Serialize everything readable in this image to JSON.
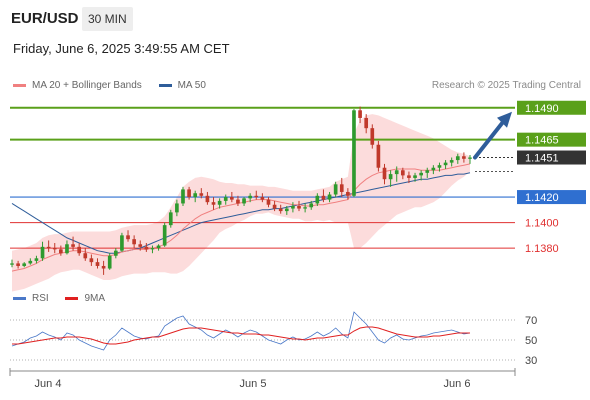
{
  "header": {
    "pair": "EUR/USD",
    "timeframe": "30 MIN",
    "datetime": "Friday, June 6, 2025 3:49:55 AM CET"
  },
  "legend": {
    "ma20_label": "MA 20 + Bollinger Bands",
    "ma50_label": "MA 50",
    "ma20_color": "#f08080",
    "ma50_color": "#2f5d9a",
    "credit": "Research © 2025 Trading Central"
  },
  "rsi_legend": {
    "rsi_label": "RSI",
    "ma_label": "9MA",
    "rsi_color": "#4a78c8",
    "ma_color": "#e02020"
  },
  "chart_data": [
    {
      "type": "candlestick",
      "title": "EUR/USD",
      "x_labels": [
        "Jun 4",
        "Jun 5",
        "Jun 6"
      ],
      "price_labels": [
        {
          "value": 1.149,
          "label": "1.1490",
          "role": "resistance",
          "color": "#5aa01a"
        },
        {
          "value": 1.1465,
          "label": "1.1465",
          "role": "resistance",
          "color": "#5aa01a"
        },
        {
          "value": 1.1451,
          "label": "1.1451",
          "role": "last",
          "color": "#333333"
        },
        {
          "value": 1.142,
          "label": "1.1420",
          "role": "pivot",
          "color": "#2f6fd0"
        },
        {
          "value": 1.14,
          "label": "1.1400",
          "role": "support",
          "color": "#e03030"
        },
        {
          "value": 1.138,
          "label": "1.1380",
          "role": "support",
          "color": "#e03030"
        }
      ],
      "ylim": [
        1.1355,
        1.15
      ],
      "up_color": "#2e9a2e",
      "down_color": "#c0392b",
      "candles": [
        [
          1.1367,
          1.1371,
          1.1365,
          1.1368
        ],
        [
          1.1368,
          1.137,
          1.1364,
          1.1366
        ],
        [
          1.1366,
          1.1369,
          1.1365,
          1.1368
        ],
        [
          1.1368,
          1.1372,
          1.1367,
          1.137
        ],
        [
          1.137,
          1.1374,
          1.1368,
          1.1372
        ],
        [
          1.1372,
          1.1385,
          1.137,
          1.1381
        ],
        [
          1.1381,
          1.1386,
          1.1377,
          1.138
        ],
        [
          1.138,
          1.1384,
          1.1376,
          1.1379
        ],
        [
          1.1379,
          1.1382,
          1.1374,
          1.1376
        ],
        [
          1.1376,
          1.1386,
          1.1375,
          1.1383
        ],
        [
          1.1383,
          1.1389,
          1.1378,
          1.1381
        ],
        [
          1.1381,
          1.1384,
          1.1374,
          1.1376
        ],
        [
          1.1376,
          1.138,
          1.137,
          1.1372
        ],
        [
          1.1372,
          1.1375,
          1.1366,
          1.1369
        ],
        [
          1.1369,
          1.1372,
          1.1364,
          1.1366
        ],
        [
          1.1366,
          1.137,
          1.1359,
          1.1364
        ],
        [
          1.1364,
          1.1376,
          1.1363,
          1.1374
        ],
        [
          1.1374,
          1.138,
          1.1372,
          1.1378
        ],
        [
          1.1378,
          1.1392,
          1.1377,
          1.139
        ],
        [
          1.139,
          1.1394,
          1.1385,
          1.1387
        ],
        [
          1.1387,
          1.139,
          1.138,
          1.1383
        ],
        [
          1.1383,
          1.1386,
          1.1378,
          1.1381
        ],
        [
          1.1381,
          1.1384,
          1.1377,
          1.1379
        ],
        [
          1.1379,
          1.1382,
          1.1376,
          1.138
        ],
        [
          1.138,
          1.1383,
          1.1378,
          1.1382
        ],
        [
          1.1382,
          1.14,
          1.1381,
          1.1398
        ],
        [
          1.1398,
          1.141,
          1.1396,
          1.1408
        ],
        [
          1.1408,
          1.1418,
          1.1405,
          1.1415
        ],
        [
          1.1415,
          1.1428,
          1.1413,
          1.1426
        ],
        [
          1.1426,
          1.1428,
          1.1418,
          1.142
        ],
        [
          1.142,
          1.1425,
          1.1416,
          1.1423
        ],
        [
          1.1423,
          1.1427,
          1.1419,
          1.1421
        ],
        [
          1.1421,
          1.1424,
          1.1414,
          1.1416
        ],
        [
          1.1416,
          1.142,
          1.141,
          1.1414
        ],
        [
          1.1414,
          1.1419,
          1.1411,
          1.1417
        ],
        [
          1.1417,
          1.1422,
          1.1414,
          1.142
        ],
        [
          1.142,
          1.1424,
          1.1416,
          1.1418
        ],
        [
          1.1418,
          1.1421,
          1.1413,
          1.1415
        ],
        [
          1.1415,
          1.142,
          1.1413,
          1.1419
        ],
        [
          1.1419,
          1.1423,
          1.1416,
          1.1421
        ],
        [
          1.1421,
          1.1425,
          1.1418,
          1.142
        ],
        [
          1.142,
          1.1423,
          1.1416,
          1.1418
        ],
        [
          1.1418,
          1.142,
          1.1412,
          1.1414
        ],
        [
          1.1414,
          1.1417,
          1.1409,
          1.1411
        ],
        [
          1.1411,
          1.1414,
          1.1407,
          1.1409
        ],
        [
          1.1409,
          1.1413,
          1.1406,
          1.1411
        ],
        [
          1.1411,
          1.1416,
          1.1408,
          1.1413
        ],
        [
          1.1413,
          1.1417,
          1.1409,
          1.1411
        ],
        [
          1.1411,
          1.1415,
          1.1408,
          1.1412
        ],
        [
          1.1412,
          1.1417,
          1.141,
          1.1415
        ],
        [
          1.1415,
          1.1423,
          1.1413,
          1.1421
        ],
        [
          1.1421,
          1.1426,
          1.1416,
          1.1418
        ],
        [
          1.1418,
          1.1424,
          1.1416,
          1.1422
        ],
        [
          1.1422,
          1.1432,
          1.142,
          1.143
        ],
        [
          1.143,
          1.1435,
          1.142,
          1.1424
        ],
        [
          1.1424,
          1.1427,
          1.1418,
          1.1421
        ],
        [
          1.1421,
          1.1489,
          1.142,
          1.1488
        ],
        [
          1.1488,
          1.1491,
          1.1478,
          1.1482
        ],
        [
          1.1482,
          1.1485,
          1.147,
          1.1474
        ],
        [
          1.1474,
          1.1477,
          1.1458,
          1.1461
        ],
        [
          1.1461,
          1.1464,
          1.144,
          1.1443
        ],
        [
          1.1443,
          1.1446,
          1.143,
          1.1434
        ],
        [
          1.1434,
          1.1441,
          1.1428,
          1.1438
        ],
        [
          1.1438,
          1.1444,
          1.1432,
          1.1441
        ],
        [
          1.1441,
          1.1443,
          1.1434,
          1.1437
        ],
        [
          1.1437,
          1.144,
          1.1431,
          1.1435
        ],
        [
          1.1435,
          1.1439,
          1.1432,
          1.1437
        ],
        [
          1.1437,
          1.1441,
          1.1433,
          1.1439
        ],
        [
          1.1439,
          1.1443,
          1.1435,
          1.1441
        ],
        [
          1.1441,
          1.1445,
          1.1438,
          1.1443
        ],
        [
          1.1443,
          1.1447,
          1.144,
          1.1445
        ],
        [
          1.1445,
          1.1449,
          1.1442,
          1.1447
        ],
        [
          1.1447,
          1.1451,
          1.1444,
          1.1449
        ],
        [
          1.1449,
          1.1454,
          1.1446,
          1.1452
        ],
        [
          1.1452,
          1.1455,
          1.1447,
          1.145
        ],
        [
          1.145,
          1.1453,
          1.1446,
          1.1451
        ]
      ],
      "ma20": [
        1.1362,
        1.1363,
        1.1364,
        1.1366,
        1.1368,
        1.1371,
        1.1373,
        1.1375,
        1.1376,
        1.1377,
        1.1378,
        1.1378,
        1.1377,
        1.1376,
        1.1375,
        1.1374,
        1.1374,
        1.1375,
        1.1377,
        1.1378,
        1.1379,
        1.1379,
        1.1379,
        1.138,
        1.1381,
        1.1383,
        1.1386,
        1.139,
        1.1395,
        1.1399,
        1.1403,
        1.1406,
        1.1408,
        1.141,
        1.1412,
        1.1413,
        1.1414,
        1.1415,
        1.1416,
        1.1417,
        1.1418,
        1.1418,
        1.1418,
        1.1417,
        1.1416,
        1.1415,
        1.1414,
        1.1414,
        1.1413,
        1.1413,
        1.1414,
        1.1414,
        1.1415,
        1.1416,
        1.1417,
        1.1418,
        1.1425,
        1.143,
        1.1434,
        1.1437,
        1.1439,
        1.144,
        1.1441,
        1.1442,
        1.1442,
        1.1442,
        1.1442,
        1.1441,
        1.1441,
        1.1441,
        1.1441,
        1.1442,
        1.1443,
        1.1444,
        1.1445,
        1.1446
      ],
      "bb_upper": [
        1.1378,
        1.1379,
        1.138,
        1.1382,
        1.1384,
        1.1388,
        1.139,
        1.1391,
        1.1391,
        1.1392,
        1.1393,
        1.1393,
        1.1393,
        1.1393,
        1.1393,
        1.1393,
        1.1393,
        1.1394,
        1.1396,
        1.1397,
        1.1398,
        1.1398,
        1.1398,
        1.1399,
        1.1401,
        1.1405,
        1.1412,
        1.142,
        1.1428,
        1.1432,
        1.1435,
        1.1436,
        1.1435,
        1.1434,
        1.1432,
        1.1431,
        1.1431,
        1.143,
        1.143,
        1.1429,
        1.1429,
        1.1429,
        1.1428,
        1.1428,
        1.1427,
        1.1426,
        1.1425,
        1.1425,
        1.1425,
        1.1425,
        1.1426,
        1.1427,
        1.1428,
        1.1432,
        1.1434,
        1.1436,
        1.147,
        1.148,
        1.1484,
        1.1485,
        1.1484,
        1.1482,
        1.148,
        1.1478,
        1.1476,
        1.1474,
        1.1472,
        1.147,
        1.1468,
        1.1466,
        1.1463,
        1.146,
        1.1457,
        1.1455,
        1.1454,
        1.1452
      ],
      "bb_lower": [
        1.1346,
        1.1347,
        1.1348,
        1.135,
        1.1352,
        1.1354,
        1.1356,
        1.1359,
        1.1361,
        1.1362,
        1.1363,
        1.1363,
        1.1361,
        1.1359,
        1.1357,
        1.1355,
        1.1355,
        1.1356,
        1.1358,
        1.1359,
        1.136,
        1.136,
        1.136,
        1.1361,
        1.1361,
        1.1361,
        1.136,
        1.136,
        1.1362,
        1.1366,
        1.1371,
        1.1376,
        1.1381,
        1.1386,
        1.1392,
        1.1395,
        1.1397,
        1.14,
        1.1402,
        1.1405,
        1.1407,
        1.1407,
        1.1408,
        1.1406,
        1.1405,
        1.1404,
        1.1403,
        1.1403,
        1.1401,
        1.1401,
        1.1402,
        1.1401,
        1.1402,
        1.14,
        1.14,
        1.14,
        1.138,
        1.138,
        1.1384,
        1.1389,
        1.1394,
        1.1398,
        1.1402,
        1.1406,
        1.1408,
        1.141,
        1.1412,
        1.1412,
        1.1414,
        1.1416,
        1.1419,
        1.1424,
        1.1429,
        1.1433,
        1.1436,
        1.144
      ],
      "ma50": [
        1.1415,
        1.1412,
        1.1409,
        1.1406,
        1.1403,
        1.14,
        1.1397,
        1.1394,
        1.1391,
        1.1388,
        1.1386,
        1.1384,
        1.1382,
        1.138,
        1.1378,
        1.1377,
        1.1376,
        1.1376,
        1.1377,
        1.1378,
        1.1379,
        1.138,
        1.1382,
        1.1384,
        1.1386,
        1.1388,
        1.139,
        1.1392,
        1.1394,
        1.1396,
        1.1398,
        1.14,
        1.1401,
        1.1402,
        1.1403,
        1.1404,
        1.1405,
        1.1406,
        1.1407,
        1.1408,
        1.1409,
        1.141,
        1.141,
        1.1411,
        1.1411,
        1.1412,
        1.1413,
        1.1414,
        1.1415,
        1.1416,
        1.1417,
        1.1418,
        1.1419,
        1.142,
        1.1421,
        1.1422,
        1.1423,
        1.1424,
        1.1425,
        1.1426,
        1.1427,
        1.1428,
        1.1429,
        1.143,
        1.1431,
        1.1432,
        1.1433,
        1.1434,
        1.1434,
        1.1435,
        1.1436,
        1.1437,
        1.1437,
        1.1438,
        1.1438,
        1.1439
      ],
      "projection_target": 1.149
    },
    {
      "type": "line",
      "title": "RSI",
      "y_ticks": [
        "70",
        "50",
        "30"
      ],
      "ylim": [
        20,
        85
      ],
      "series": [
        {
          "name": "RSI",
          "color": "#4a78c8",
          "values": [
            44,
            46,
            48,
            52,
            54,
            58,
            55,
            53,
            50,
            57,
            55,
            50,
            47,
            44,
            42,
            40,
            50,
            55,
            62,
            58,
            54,
            52,
            51,
            53,
            54,
            64,
            68,
            72,
            74,
            66,
            63,
            60,
            55,
            52,
            56,
            60,
            57,
            53,
            57,
            60,
            58,
            54,
            50,
            48,
            46,
            50,
            53,
            50,
            51,
            54,
            58,
            54,
            57,
            62,
            56,
            52,
            78,
            72,
            66,
            58,
            50,
            47,
            52,
            55,
            51,
            50,
            52,
            54,
            55,
            57,
            58,
            59,
            60,
            58,
            56,
            57
          ]
        },
        {
          "name": "9MA",
          "color": "#e02020",
          "values": [
            46,
            46,
            47,
            48,
            49,
            50,
            51,
            52,
            52,
            53,
            53,
            53,
            52,
            51,
            49,
            47,
            46,
            46,
            47,
            48,
            50,
            51,
            52,
            53,
            53,
            55,
            57,
            59,
            61,
            62,
            62,
            62,
            61,
            60,
            59,
            58,
            57,
            57,
            56,
            56,
            56,
            55,
            55,
            54,
            53,
            52,
            51,
            51,
            50,
            51,
            52,
            52,
            53,
            54,
            55,
            55,
            59,
            62,
            63,
            63,
            62,
            60,
            58,
            56,
            55,
            54,
            53,
            53,
            53,
            54,
            54,
            55,
            56,
            57,
            57,
            57
          ]
        }
      ]
    }
  ]
}
